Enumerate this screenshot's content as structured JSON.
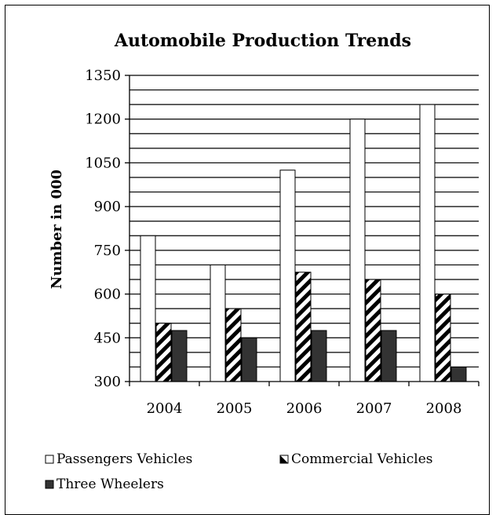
{
  "chart_data": {
    "type": "bar",
    "title": "Automobile Production Trends",
    "ylabel": "Number in 000",
    "xlabel": "",
    "categories": [
      "2004",
      "2005",
      "2006",
      "2007",
      "2008"
    ],
    "ylim": [
      300,
      1350
    ],
    "yticks": [
      300,
      450,
      600,
      750,
      900,
      1050,
      1200,
      1350
    ],
    "ytick_labels": [
      "300",
      "450",
      "600",
      "750",
      "900",
      "1050",
      "1200",
      "1350"
    ],
    "grid": "horizontal, every 50",
    "legend_position": "bottom",
    "series": [
      {
        "name": "Passengers Vehicles",
        "values": [
          800,
          700,
          1025,
          1200,
          1250
        ],
        "fill": "white",
        "legend_symbol": "□"
      },
      {
        "name": "Commercial Vehicles",
        "values": [
          500,
          550,
          675,
          650,
          600
        ],
        "fill": "diagonal-hatch",
        "legend_symbol": "◪"
      },
      {
        "name": "Three Wheelers",
        "values": [
          475,
          450,
          475,
          475,
          350
        ],
        "fill": "#333333",
        "legend_symbol": "■"
      }
    ]
  }
}
